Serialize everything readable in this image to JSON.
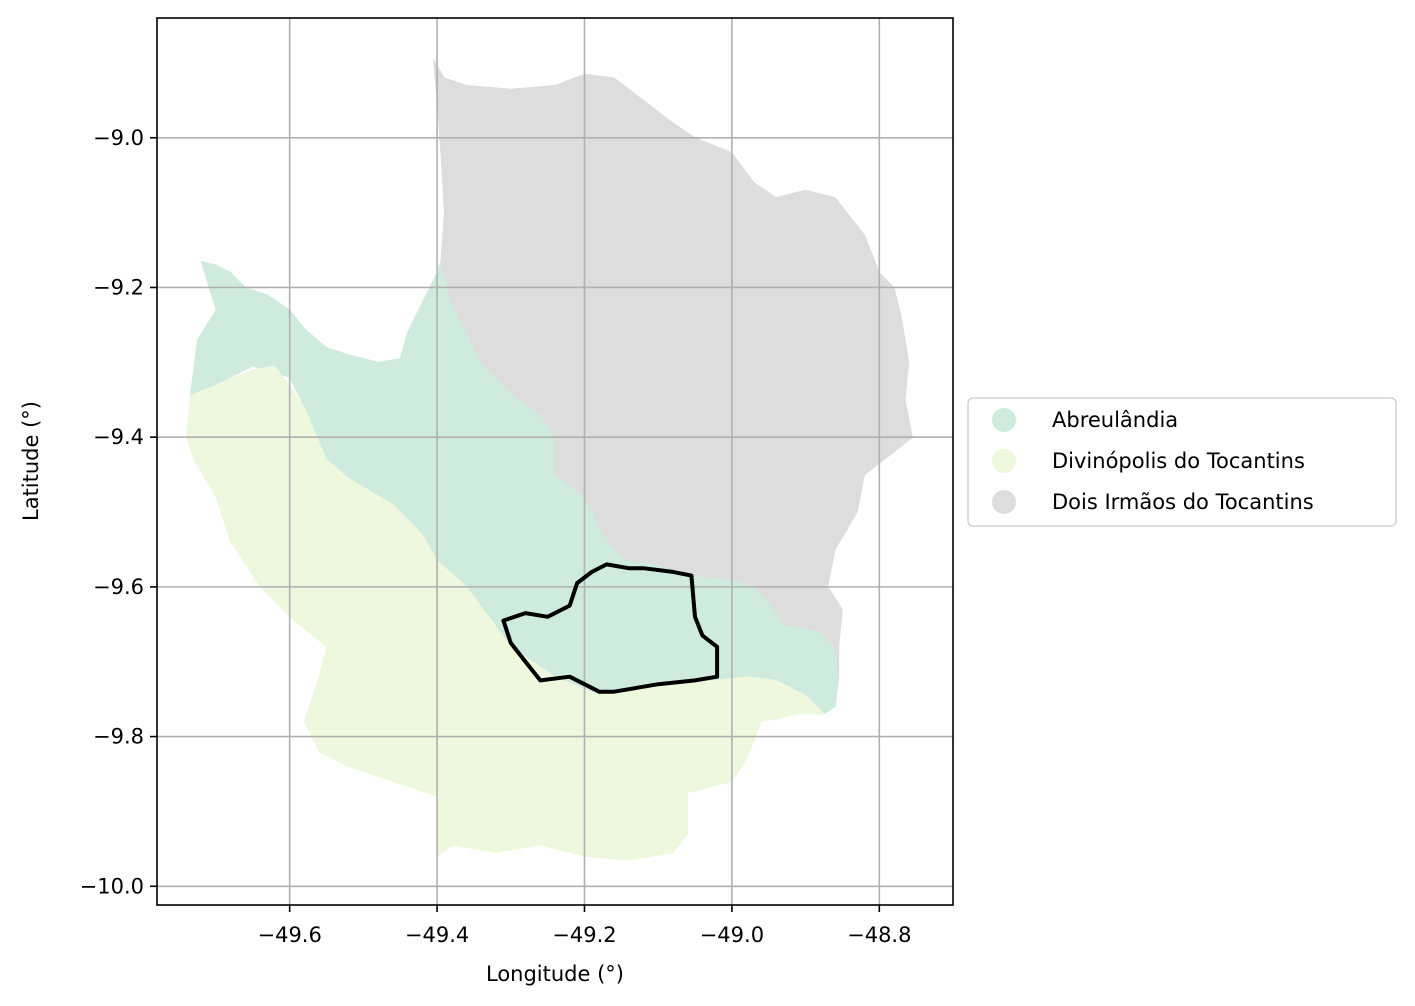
{
  "chart_data": {
    "type": "choropleth-map",
    "xlabel": "Longitude (°)",
    "ylabel": "Latitude (°)",
    "xlim": [
      -49.78,
      -48.7
    ],
    "ylim": [
      -10.025,
      -8.84
    ],
    "x_ticks": [
      {
        "value": -49.6,
        "label": "−49.6"
      },
      {
        "value": -49.4,
        "label": "−49.4"
      },
      {
        "value": -49.2,
        "label": "−49.2"
      },
      {
        "value": -49.0,
        "label": "−49.0"
      },
      {
        "value": -48.8,
        "label": "−48.8"
      }
    ],
    "y_ticks": [
      {
        "value": -9.0,
        "label": "−9.0"
      },
      {
        "value": -9.2,
        "label": "−9.2"
      },
      {
        "value": -9.4,
        "label": "−9.4"
      },
      {
        "value": -9.6,
        "label": "−9.6"
      },
      {
        "value": -9.8,
        "label": "−9.8"
      },
      {
        "value": -10.0,
        "label": "−10.0"
      }
    ],
    "grid": true,
    "legend_position": "right",
    "regions": [
      {
        "name": "Abreulândia",
        "color": "#cfebde",
        "polygon": [
          [
            -49.72,
            -9.165
          ],
          [
            -49.7,
            -9.17
          ],
          [
            -49.68,
            -9.18
          ],
          [
            -49.66,
            -9.2
          ],
          [
            -49.63,
            -9.21
          ],
          [
            -49.6,
            -9.23
          ],
          [
            -49.58,
            -9.255
          ],
          [
            -49.55,
            -9.28
          ],
          [
            -49.52,
            -9.29
          ],
          [
            -49.48,
            -9.3
          ],
          [
            -49.45,
            -9.295
          ],
          [
            -49.44,
            -9.26
          ],
          [
            -49.42,
            -9.22
          ],
          [
            -49.4,
            -9.18
          ],
          [
            -49.395,
            -9.165
          ],
          [
            -49.38,
            -9.22
          ],
          [
            -49.36,
            -9.26
          ],
          [
            -49.34,
            -9.3
          ],
          [
            -49.3,
            -9.34
          ],
          [
            -49.26,
            -9.37
          ],
          [
            -49.24,
            -9.4
          ],
          [
            -49.24,
            -9.45
          ],
          [
            -49.2,
            -9.48
          ],
          [
            -49.18,
            -9.52
          ],
          [
            -49.16,
            -9.55
          ],
          [
            -49.14,
            -9.565
          ],
          [
            -49.1,
            -9.57
          ],
          [
            -49.05,
            -9.585
          ],
          [
            -49.0,
            -9.59
          ],
          [
            -48.97,
            -9.6
          ],
          [
            -48.95,
            -9.62
          ],
          [
            -48.93,
            -9.65
          ],
          [
            -48.9,
            -9.655
          ],
          [
            -48.88,
            -9.66
          ],
          [
            -48.86,
            -9.68
          ],
          [
            -48.855,
            -9.72
          ],
          [
            -48.86,
            -9.76
          ],
          [
            -48.875,
            -9.77
          ],
          [
            -48.9,
            -9.745
          ],
          [
            -48.94,
            -9.725
          ],
          [
            -48.98,
            -9.72
          ],
          [
            -49.02,
            -9.725
          ],
          [
            -49.1,
            -9.73
          ],
          [
            -49.18,
            -9.745
          ],
          [
            -49.24,
            -9.72
          ],
          [
            -49.3,
            -9.68
          ],
          [
            -49.33,
            -9.64
          ],
          [
            -49.36,
            -9.6
          ],
          [
            -49.4,
            -9.565
          ],
          [
            -49.42,
            -9.53
          ],
          [
            -49.46,
            -9.49
          ],
          [
            -49.52,
            -9.455
          ],
          [
            -49.55,
            -9.43
          ],
          [
            -49.58,
            -9.36
          ],
          [
            -49.6,
            -9.32
          ],
          [
            -49.65,
            -9.305
          ],
          [
            -49.7,
            -9.33
          ],
          [
            -49.735,
            -9.345
          ],
          [
            -49.725,
            -9.27
          ],
          [
            -49.7,
            -9.23
          ]
        ]
      },
      {
        "name": "Divinópolis do Tocantins",
        "color": "#eef8de",
        "polygon": [
          [
            -49.735,
            -9.345
          ],
          [
            -49.7,
            -9.33
          ],
          [
            -49.65,
            -9.31
          ],
          [
            -49.62,
            -9.305
          ],
          [
            -49.58,
            -9.36
          ],
          [
            -49.55,
            -9.43
          ],
          [
            -49.52,
            -9.455
          ],
          [
            -49.46,
            -9.49
          ],
          [
            -49.42,
            -9.53
          ],
          [
            -49.4,
            -9.565
          ],
          [
            -49.36,
            -9.6
          ],
          [
            -49.33,
            -9.64
          ],
          [
            -49.3,
            -9.68
          ],
          [
            -49.24,
            -9.72
          ],
          [
            -49.18,
            -9.745
          ],
          [
            -49.1,
            -9.73
          ],
          [
            -49.02,
            -9.725
          ],
          [
            -48.98,
            -9.72
          ],
          [
            -48.94,
            -9.725
          ],
          [
            -48.9,
            -9.745
          ],
          [
            -48.875,
            -9.77
          ],
          [
            -48.91,
            -9.77
          ],
          [
            -48.96,
            -9.78
          ],
          [
            -48.98,
            -9.83
          ],
          [
            -49.0,
            -9.86
          ],
          [
            -49.06,
            -9.875
          ],
          [
            -49.06,
            -9.93
          ],
          [
            -49.08,
            -9.955
          ],
          [
            -49.14,
            -9.965
          ],
          [
            -49.2,
            -9.96
          ],
          [
            -49.26,
            -9.945
          ],
          [
            -49.32,
            -9.955
          ],
          [
            -49.38,
            -9.945
          ],
          [
            -49.4,
            -9.96
          ],
          [
            -49.4,
            -9.88
          ],
          [
            -49.46,
            -9.86
          ],
          [
            -49.52,
            -9.84
          ],
          [
            -49.56,
            -9.82
          ],
          [
            -49.58,
            -9.78
          ],
          [
            -49.56,
            -9.72
          ],
          [
            -49.55,
            -9.68
          ],
          [
            -49.6,
            -9.64
          ],
          [
            -49.64,
            -9.6
          ],
          [
            -49.68,
            -9.54
          ],
          [
            -49.7,
            -9.48
          ],
          [
            -49.73,
            -9.43
          ],
          [
            -49.74,
            -9.4
          ]
        ]
      },
      {
        "name": "Dois Irmãos do Tocantins",
        "color": "#dddddd",
        "polygon": [
          [
            -49.405,
            -8.895
          ],
          [
            -49.39,
            -8.92
          ],
          [
            -49.36,
            -8.93
          ],
          [
            -49.3,
            -8.935
          ],
          [
            -49.24,
            -8.93
          ],
          [
            -49.2,
            -8.915
          ],
          [
            -49.16,
            -8.92
          ],
          [
            -49.12,
            -8.95
          ],
          [
            -49.08,
            -8.98
          ],
          [
            -49.05,
            -9.0
          ],
          [
            -49.0,
            -9.02
          ],
          [
            -48.97,
            -9.06
          ],
          [
            -48.94,
            -9.08
          ],
          [
            -48.9,
            -9.07
          ],
          [
            -48.86,
            -9.08
          ],
          [
            -48.82,
            -9.13
          ],
          [
            -48.8,
            -9.18
          ],
          [
            -48.78,
            -9.2
          ],
          [
            -48.77,
            -9.24
          ],
          [
            -48.76,
            -9.3
          ],
          [
            -48.765,
            -9.35
          ],
          [
            -48.755,
            -9.4
          ],
          [
            -48.78,
            -9.42
          ],
          [
            -48.82,
            -9.45
          ],
          [
            -48.83,
            -9.5
          ],
          [
            -48.86,
            -9.55
          ],
          [
            -48.87,
            -9.6
          ],
          [
            -48.85,
            -9.63
          ],
          [
            -48.855,
            -9.68
          ],
          [
            -48.855,
            -9.72
          ],
          [
            -48.86,
            -9.76
          ],
          [
            -48.855,
            -9.72
          ],
          [
            -48.86,
            -9.68
          ],
          [
            -48.88,
            -9.66
          ],
          [
            -48.9,
            -9.655
          ],
          [
            -48.93,
            -9.65
          ],
          [
            -48.95,
            -9.62
          ],
          [
            -48.97,
            -9.6
          ],
          [
            -49.0,
            -9.59
          ],
          [
            -49.05,
            -9.585
          ],
          [
            -49.1,
            -9.57
          ],
          [
            -49.14,
            -9.565
          ],
          [
            -49.16,
            -9.55
          ],
          [
            -49.18,
            -9.52
          ],
          [
            -49.2,
            -9.48
          ],
          [
            -49.24,
            -9.45
          ],
          [
            -49.24,
            -9.4
          ],
          [
            -49.26,
            -9.37
          ],
          [
            -49.3,
            -9.34
          ],
          [
            -49.34,
            -9.3
          ],
          [
            -49.36,
            -9.26
          ],
          [
            -49.38,
            -9.22
          ],
          [
            -49.395,
            -9.165
          ],
          [
            -49.39,
            -9.1
          ],
          [
            -49.395,
            -9.02
          ],
          [
            -49.4,
            -8.95
          ]
        ]
      }
    ],
    "highlight_outline": {
      "color": "#000000",
      "polygon": [
        [
          -49.21,
          -9.595
        ],
        [
          -49.19,
          -9.58
        ],
        [
          -49.17,
          -9.57
        ],
        [
          -49.14,
          -9.575
        ],
        [
          -49.12,
          -9.575
        ],
        [
          -49.08,
          -9.58
        ],
        [
          -49.055,
          -9.585
        ],
        [
          -49.05,
          -9.64
        ],
        [
          -49.04,
          -9.665
        ],
        [
          -49.02,
          -9.68
        ],
        [
          -49.02,
          -9.72
        ],
        [
          -49.05,
          -9.725
        ],
        [
          -49.1,
          -9.73
        ],
        [
          -49.16,
          -9.74
        ],
        [
          -49.18,
          -9.74
        ],
        [
          -49.22,
          -9.72
        ],
        [
          -49.26,
          -9.725
        ],
        [
          -49.28,
          -9.7
        ],
        [
          -49.3,
          -9.675
        ],
        [
          -49.31,
          -9.645
        ],
        [
          -49.28,
          -9.635
        ],
        [
          -49.25,
          -9.64
        ],
        [
          -49.22,
          -9.625
        ],
        [
          -49.215,
          -9.61
        ]
      ]
    }
  }
}
